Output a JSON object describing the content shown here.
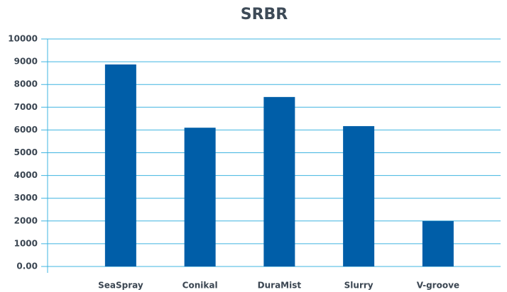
{
  "chart_data": {
    "type": "bar",
    "title": "SRBR",
    "categories": [
      "SeaSpray",
      "Conikal",
      "DuraMist",
      "Slurry",
      "V-groove"
    ],
    "values": [
      8880,
      6100,
      7450,
      6170,
      2000
    ],
    "color": "#005ea8",
    "ylim": [
      0,
      10000
    ],
    "yticks": [
      {
        "value": 0,
        "label": "0.00"
      },
      1000,
      2000,
      3000,
      4000,
      5000,
      6000,
      7000,
      8000,
      9000,
      10000
    ],
    "grid": true
  }
}
